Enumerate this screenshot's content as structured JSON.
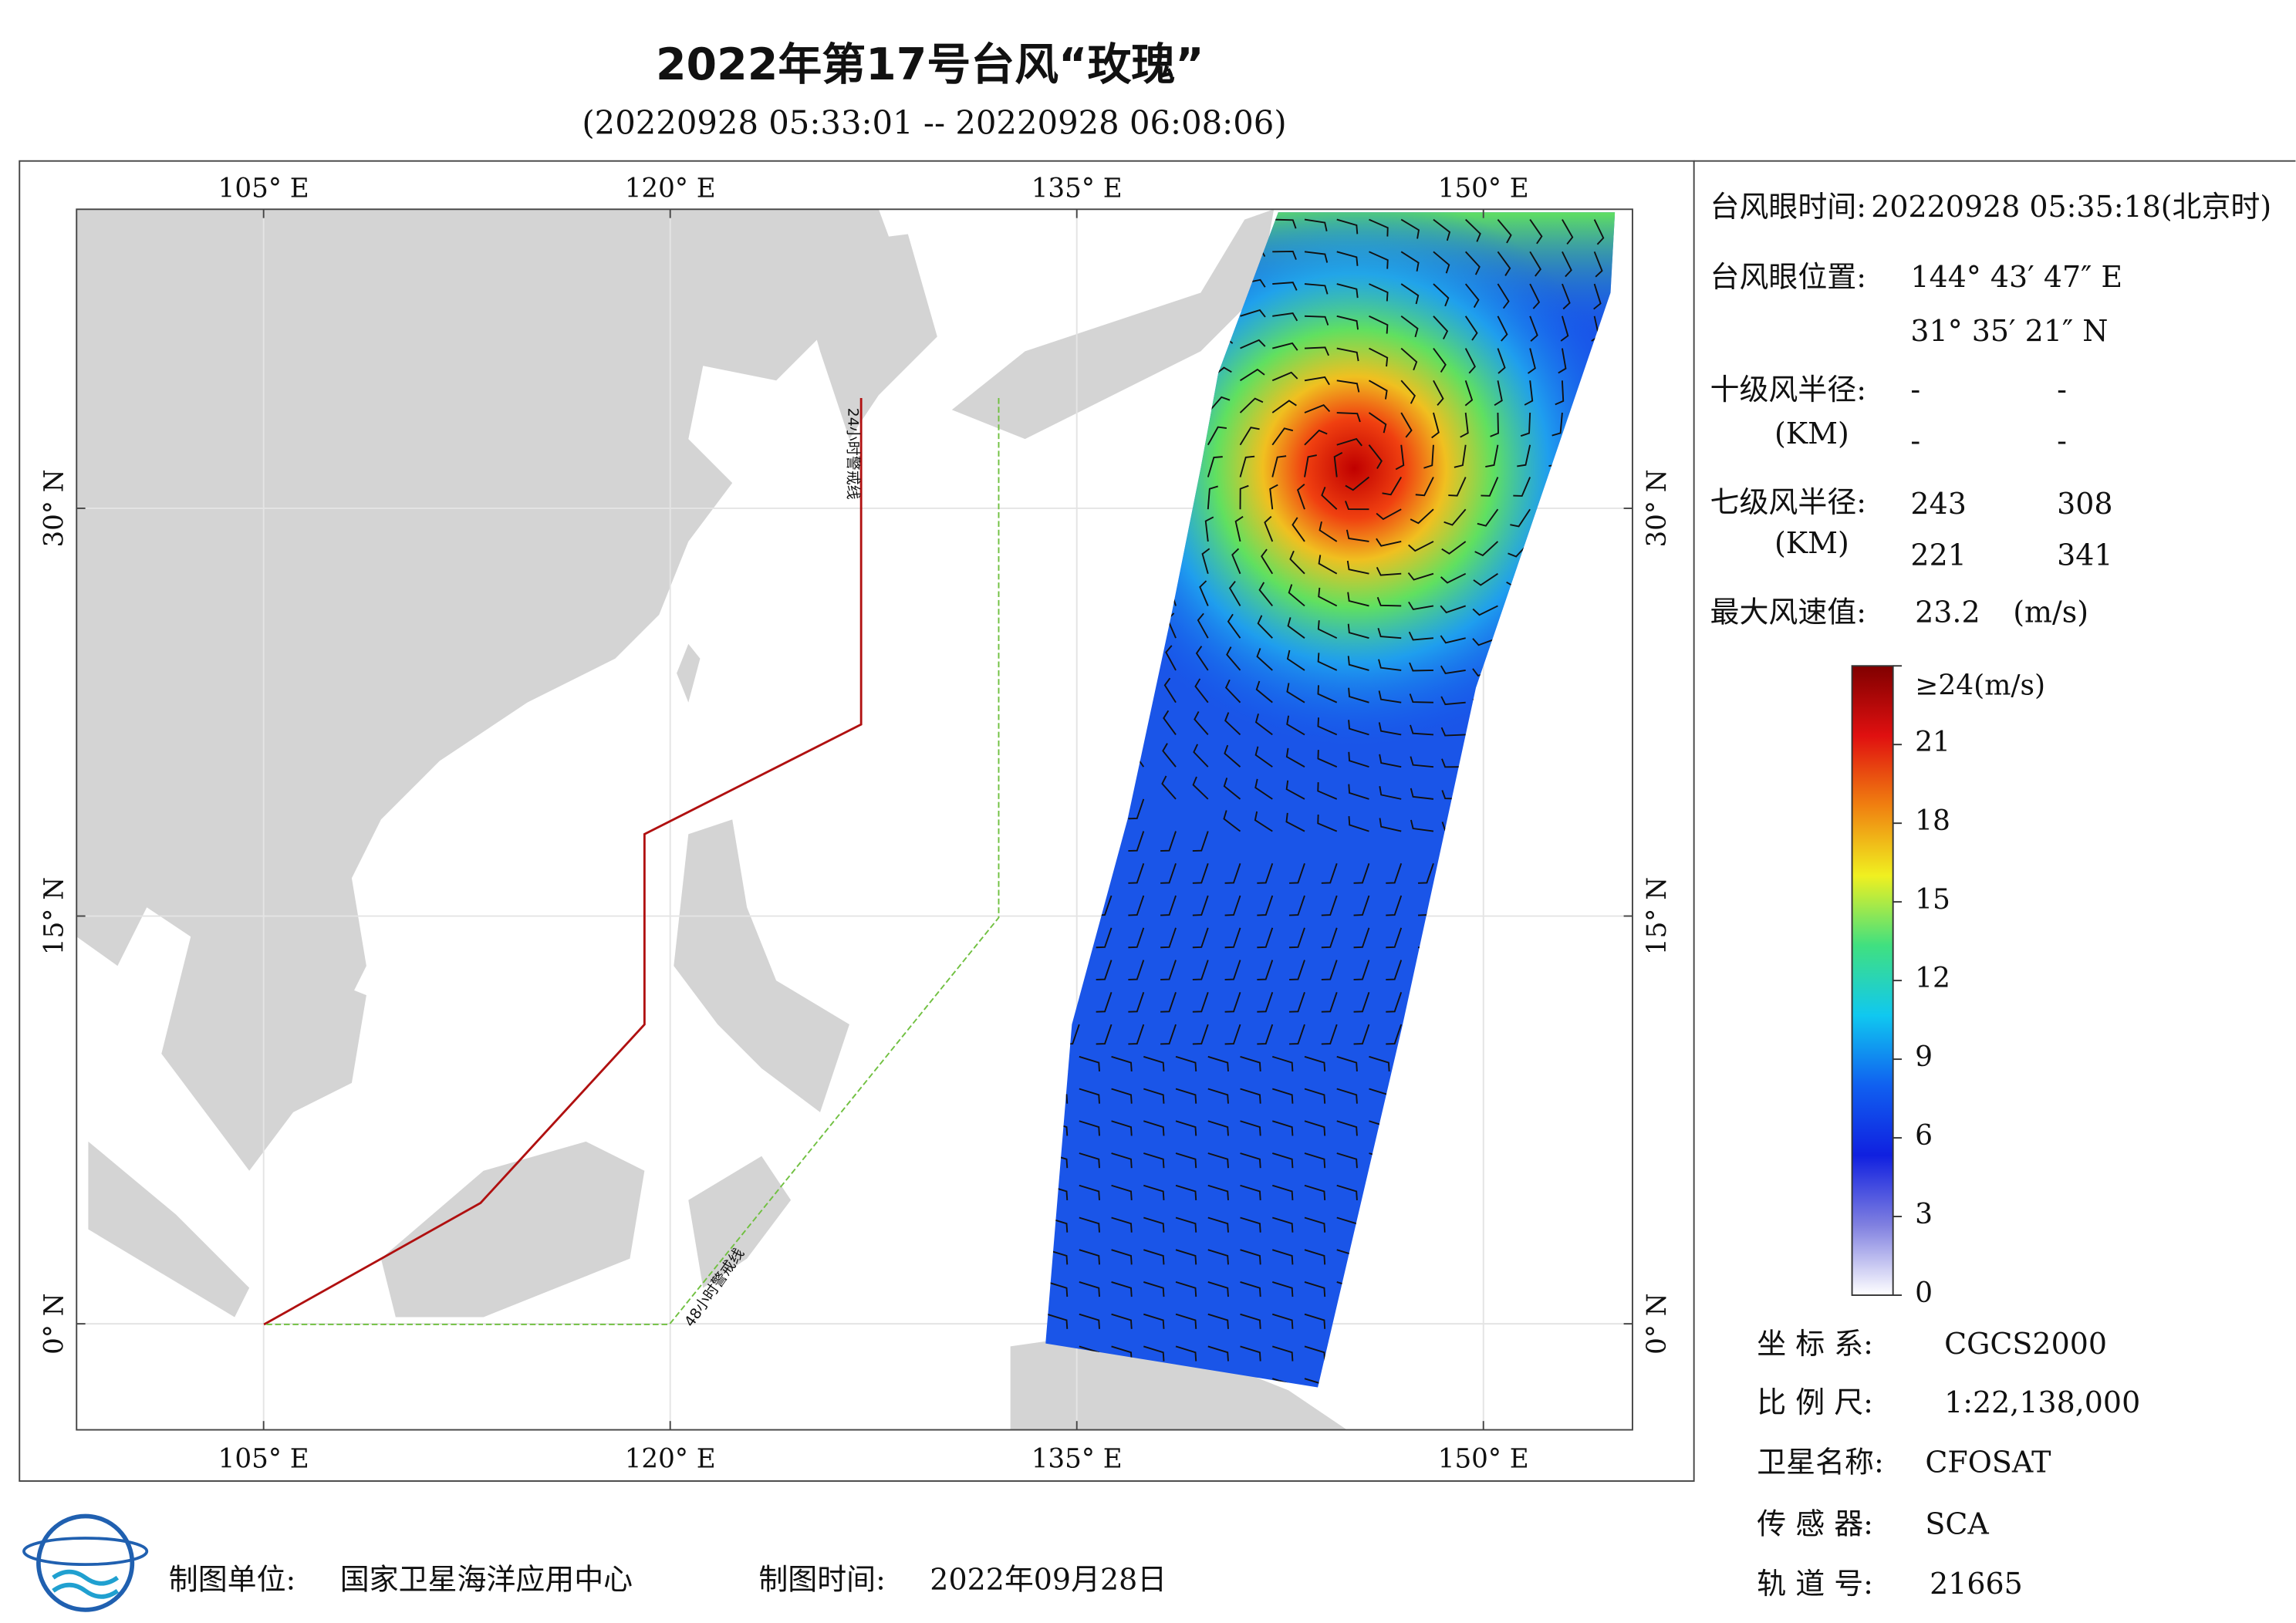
{
  "header": {
    "title": "2022年第17号台风“玫瑰”",
    "subtitle": "(20220928 05:33:01 -- 20220928 06:08:06)"
  },
  "map": {
    "xlim": [
      98.1,
      155.5
    ],
    "ylim": [
      -3.9,
      41.0
    ],
    "xticks": [
      {
        "value": 105,
        "label": "105° E"
      },
      {
        "value": 120,
        "label": "120° E"
      },
      {
        "value": 135,
        "label": "135° E"
      },
      {
        "value": 150,
        "label": "150° E"
      }
    ],
    "yticks": [
      {
        "value": 0,
        "label": "0° N"
      },
      {
        "value": 15,
        "label": "15° N"
      },
      {
        "value": 30,
        "label": "30° N"
      }
    ],
    "warning_lines": [
      "24小时警戒线",
      "48小时警戒线"
    ]
  },
  "info": {
    "eye_time_label": "台风眼时间:",
    "eye_time": "20220928 05:35:18(北京时)",
    "eye_pos_label": "台风眼位置:",
    "eye_lon": "144° 43′ 47″ E",
    "eye_lat": "31° 35′ 21″ N",
    "r10_label": "十级风半径:",
    "r10_unit": "(KM)",
    "r10": [
      "-",
      "-",
      "-",
      "-"
    ],
    "r7_label": "七级风半径:",
    "r7_unit": "(KM)",
    "r7": [
      243,
      308,
      221,
      341
    ],
    "max_label": "最大风速值:",
    "max_value": 23.2,
    "max_unit": "(m/s)"
  },
  "colorbar": {
    "lim": [
      0,
      24
    ],
    "ticks": [
      0,
      3,
      6,
      9,
      12,
      15,
      18,
      21,
      {
        "value": 24,
        "label": "≥24(m/s)"
      }
    ],
    "colors": [
      "#ffffff",
      "#8080e0",
      "#1020e0",
      "#1060f0",
      "#10c8f0",
      "#40e080",
      "#f0f020",
      "#f08010",
      "#e01010",
      "#800000"
    ]
  },
  "meta": {
    "crs_label": "坐 标 系:",
    "crs": "CGCS2000",
    "scale_label": "比 例 尺:",
    "scale": "1:22,138,000",
    "sat_label": "卫星名称:",
    "sat": "CFOSAT",
    "sensor_label": "传 感 器:",
    "sensor": "SCA",
    "orbit_label": "轨 道 号:",
    "orbit": 21665,
    "maker_label": "制图单位:",
    "maker": "国家卫星海洋应用中心",
    "date_label": "制图时间:",
    "date": "2022年09月28日"
  }
}
